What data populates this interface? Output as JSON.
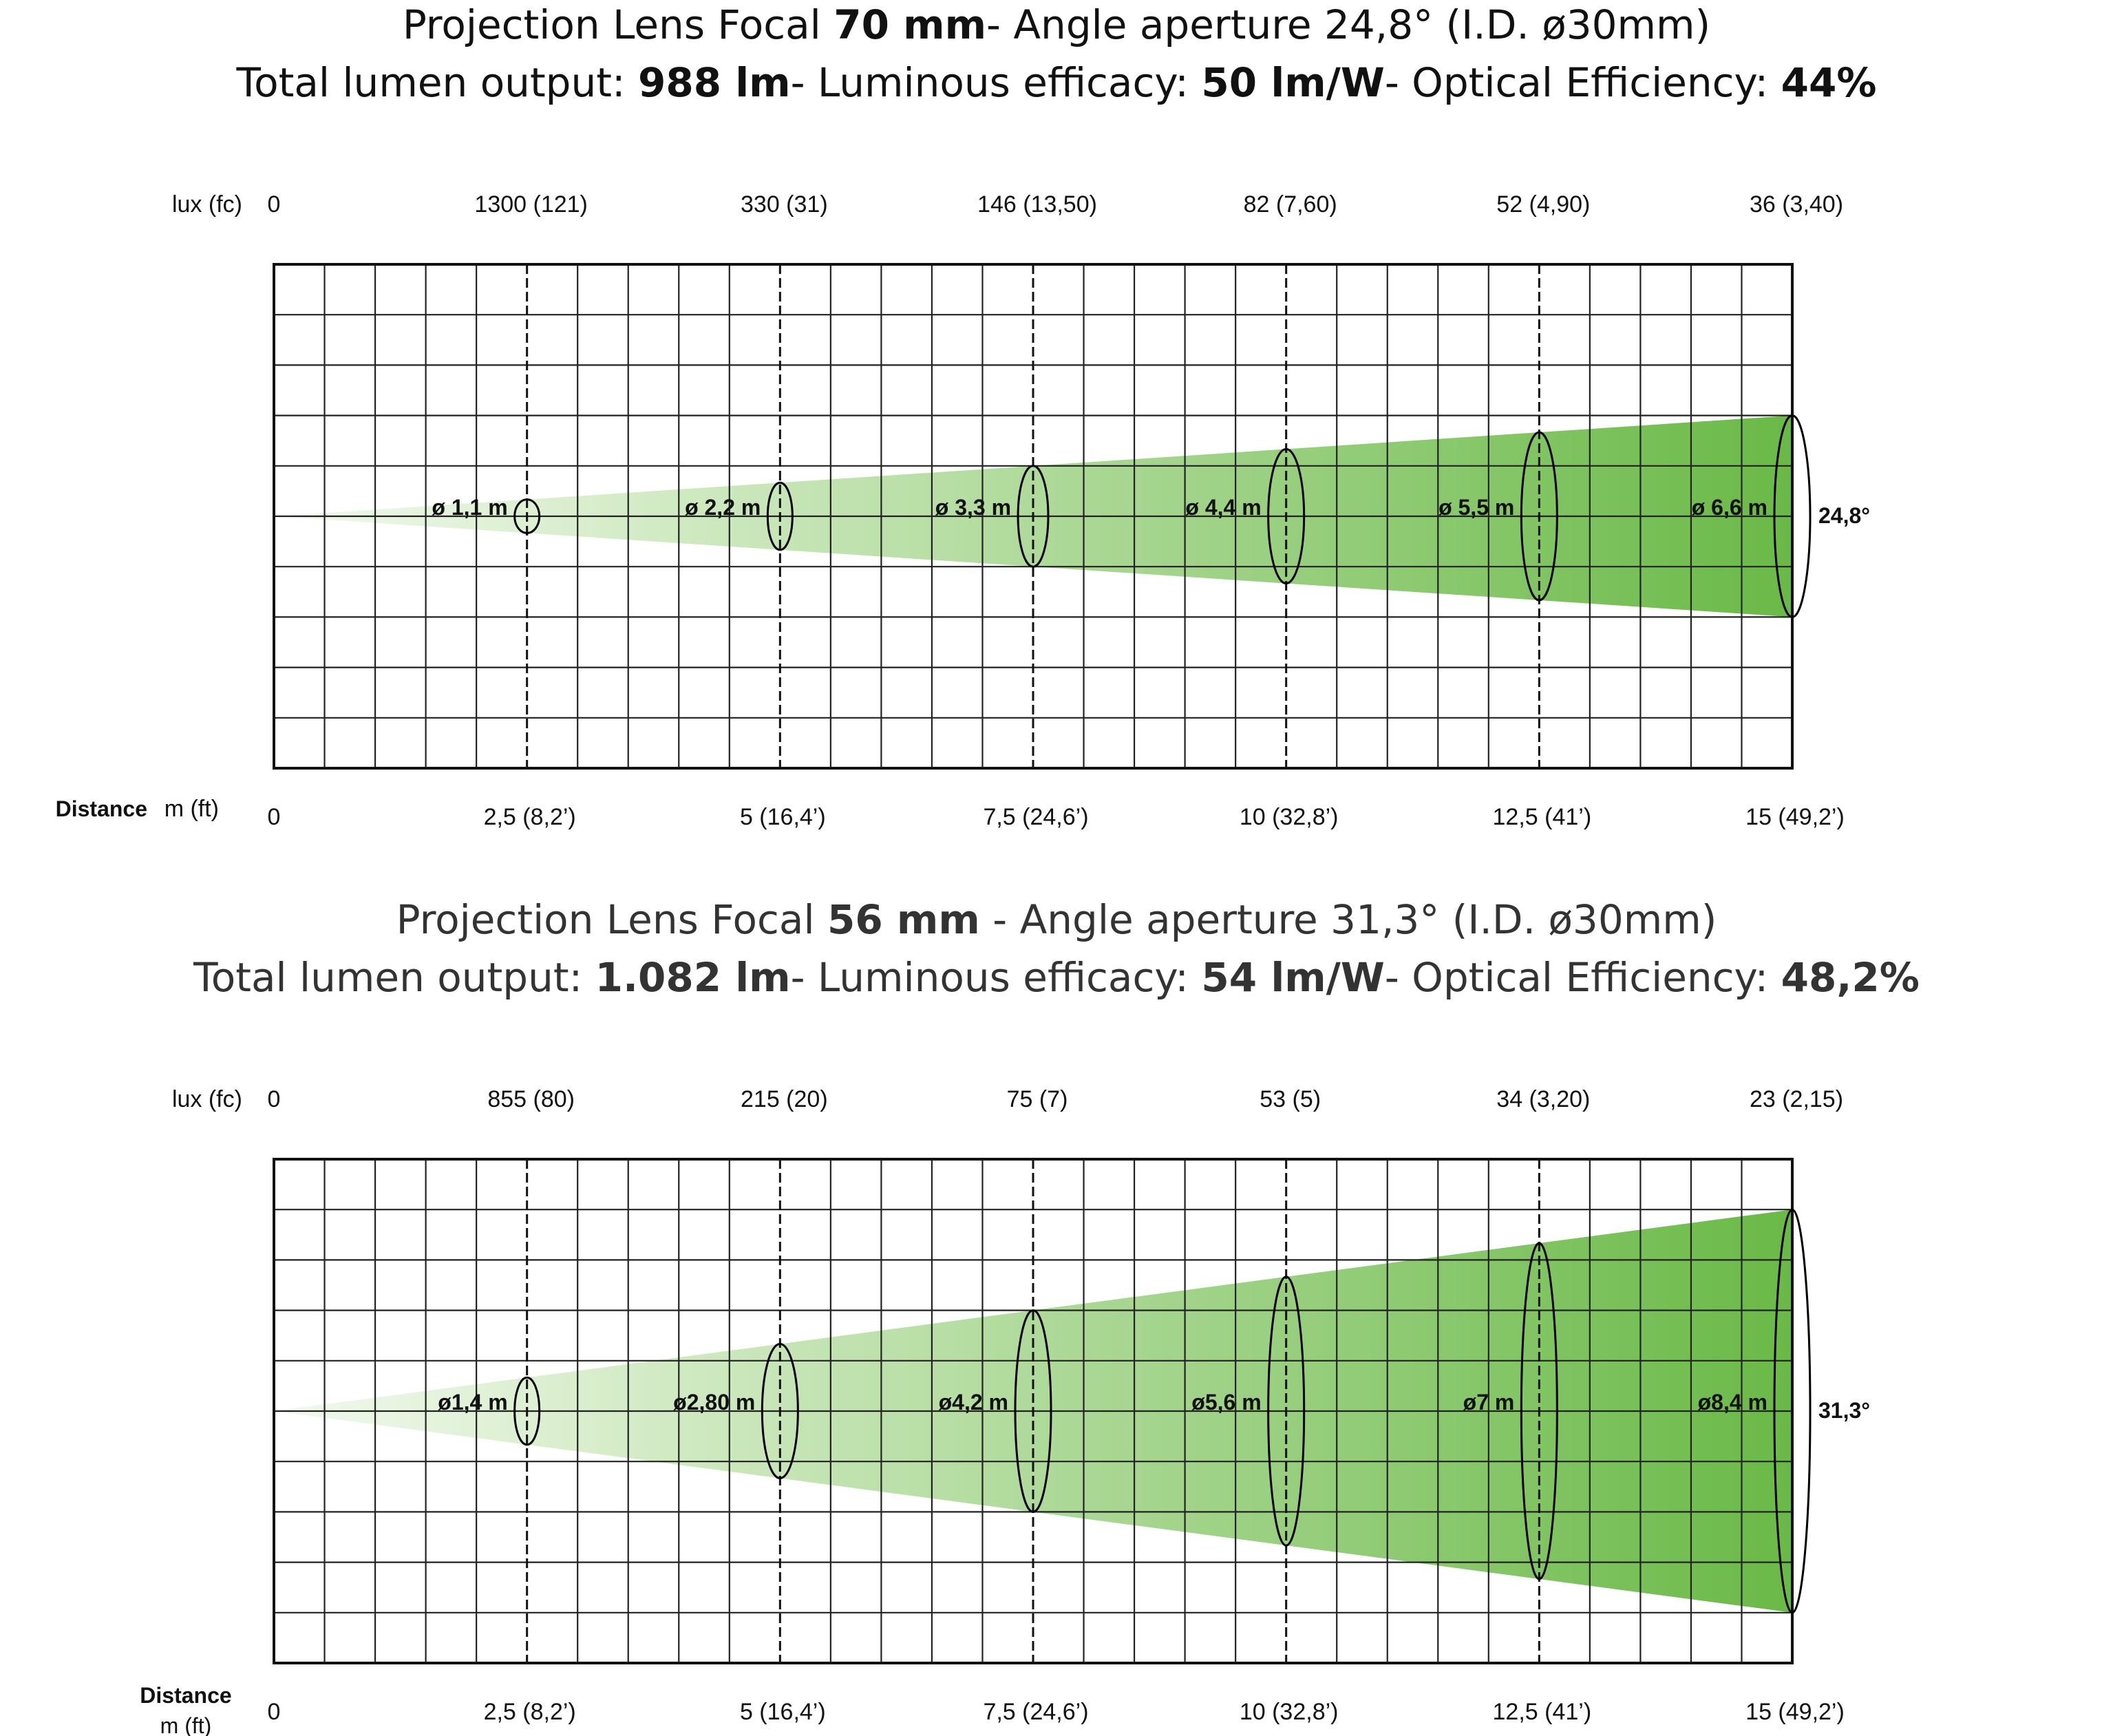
{
  "colors": {
    "beam_start": "#d9eecd",
    "beam_end": "#6ab947",
    "grid": "#222222",
    "ellipse": "#000000"
  },
  "diagrams": [
    {
      "title_line1": {
        "prefix": "Projection Lens Focal ",
        "focal": "70 mm",
        "mid": "- Angle aperture 24,8° (I.D. ø30mm)"
      },
      "title_line2": {
        "prefix": "Total lumen output: ",
        "lumen": "988 lm",
        "eff_label": "- Luminous efficacy: ",
        "efficacy": "50 lm/W",
        "opt_label": "- Optical Efficiency: ",
        "optical": "44%"
      },
      "lux_unit": "lux (fc)",
      "lux_zero": "0",
      "distance_label": "Distance",
      "distance_unit": "m (ft)",
      "distance_zero": "0",
      "angle_label": "24,8°",
      "beam_half_width_at_15m_in_grid_rows": 2.0,
      "points": [
        {
          "distance": "2,5  (8,2’)",
          "lux": "1300 (121)",
          "diameter": "ø 1,1 m"
        },
        {
          "distance": "5  (16,4’)",
          "lux": "330 (31)",
          "diameter": "ø 2,2 m"
        },
        {
          "distance": "7,5 (24,6’)",
          "lux": "146 (13,50)",
          "diameter": "ø 3,3 m"
        },
        {
          "distance": "10  (32,8’)",
          "lux": "82 (7,60)",
          "diameter": "ø 4,4 m"
        },
        {
          "distance": "12,5 (41’)",
          "lux": "52 (4,90)",
          "diameter": "ø 5,5 m"
        },
        {
          "distance": "15 (49,2’)",
          "lux": "36 (3,40)",
          "diameter": "ø 6,6 m"
        }
      ]
    },
    {
      "title_line1": {
        "prefix": "Projection Lens Focal ",
        "focal": "56 mm",
        "mid": " - Angle aperture 31,3° (I.D. ø30mm)"
      },
      "title_line2": {
        "prefix": "Total lumen output: ",
        "lumen": "1.082 lm",
        "eff_label": "- Luminous efficacy: ",
        "efficacy": "54 lm/W",
        "opt_label": "- Optical Efficiency: ",
        "optical": "48,2%"
      },
      "lux_unit": "lux (fc)",
      "lux_zero": "0",
      "distance_label": "Distance",
      "distance_unit": "m (ft)",
      "distance_zero": "0",
      "angle_label": "31,3°",
      "beam_half_width_at_15m_in_grid_rows": 4.0,
      "points": [
        {
          "distance": "2,5  (8,2’)",
          "lux": "855 (80)",
          "diameter": "ø1,4 m"
        },
        {
          "distance": "5  (16,4’)",
          "lux": "215 (20)",
          "diameter": "ø2,80 m"
        },
        {
          "distance": "7,5 (24,6’)",
          "lux": "75 (7)",
          "diameter": "ø4,2 m"
        },
        {
          "distance": "10  (32,8’)",
          "lux": "53 (5)",
          "diameter": "ø5,6 m"
        },
        {
          "distance": "12,5 (41’)",
          "lux": "34 (3,20)",
          "diameter": "ø7 m"
        },
        {
          "distance": "15 (49,2’)",
          "lux": "23 (2,15)",
          "diameter": "ø8,4 m"
        }
      ]
    }
  ]
}
